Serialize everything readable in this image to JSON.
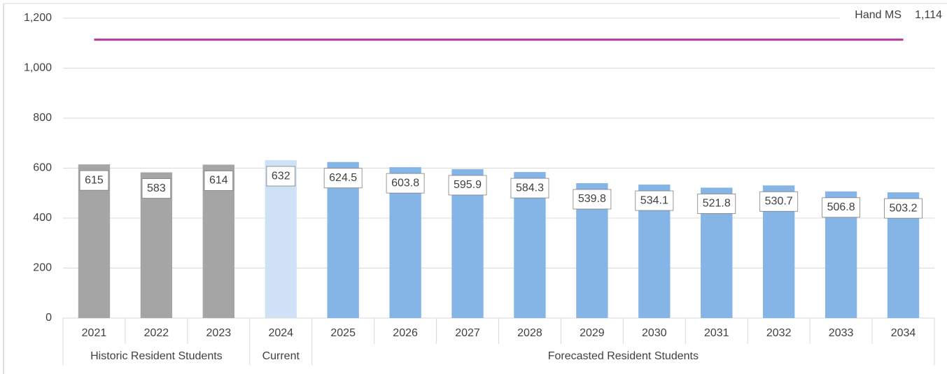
{
  "chart_data": {
    "type": "bar",
    "categories": [
      "2021",
      "2022",
      "2023",
      "2024",
      "2025",
      "2026",
      "2027",
      "2028",
      "2029",
      "2030",
      "2031",
      "2032",
      "2033",
      "2034"
    ],
    "values": [
      615,
      583,
      614,
      632,
      624.5,
      603.8,
      595.9,
      584.3,
      539.8,
      534.1,
      521.8,
      530.7,
      506.8,
      503.2
    ],
    "colors": [
      "#a5a5a5",
      "#a5a5a5",
      "#a5a5a5",
      "#cfe2f5",
      "#85b4e6",
      "#85b4e6",
      "#85b4e6",
      "#85b4e6",
      "#85b4e6",
      "#85b4e6",
      "#85b4e6",
      "#85b4e6",
      "#85b4e6",
      "#85b4e6"
    ],
    "groups": [
      {
        "name": "Historic Resident Students",
        "count": 3
      },
      {
        "name": "Current",
        "count": 1
      },
      {
        "name": "Forecasted Resident Students",
        "count": 10
      }
    ],
    "reference_line": {
      "name": "Hand MS",
      "value": 1114,
      "value_label": "1,114",
      "color": "#b0399a"
    },
    "ylim": [
      0,
      1200
    ],
    "yticks": [
      0,
      200,
      400,
      600,
      800,
      {
        "value": 1000,
        "label": "1,000"
      },
      {
        "value": 1200,
        "label": "1,200"
      }
    ],
    "grid": true
  }
}
